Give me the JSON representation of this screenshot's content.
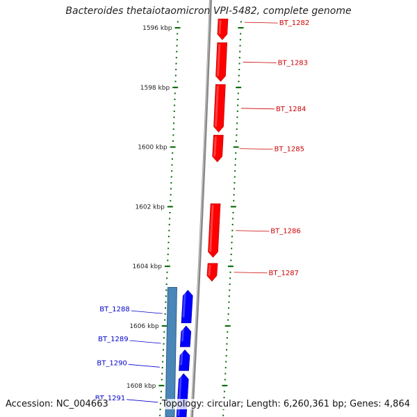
{
  "title": "Bacteroides thetaiotaomicron VPI-5482, complete genome",
  "footer": {
    "accession": "Accession: NC_004663",
    "summary": "Topology: circular; Length: 6,260,361 bp; Genes: 4,864"
  },
  "colors": {
    "forward_gene": "#ff0000",
    "reverse_gene": "#0000ff",
    "reverse_gene_label": "#0000cc",
    "forward_gene_label": "#cc0000",
    "backbone": "#888888",
    "tick": "#006400",
    "operon_bar": "#4a86b8"
  },
  "scale": {
    "ticks": [
      {
        "label": "1596 kbp",
        "kbp": 1596
      },
      {
        "label": "1598 kbp",
        "kbp": 1598
      },
      {
        "label": "1600 kbp",
        "kbp": 1600
      },
      {
        "label": "1602 kbp",
        "kbp": 1602
      },
      {
        "label": "1604 kbp",
        "kbp": 1604
      },
      {
        "label": "1606 kbp",
        "kbp": 1606
      },
      {
        "label": "1608 kbp",
        "kbp": 1608
      }
    ]
  },
  "genes": [
    {
      "name": "BT_1282",
      "strand": "+",
      "start_kbp": 1595.7,
      "end_kbp": 1596.4
    },
    {
      "name": "BT_1283",
      "strand": "+",
      "start_kbp": 1596.5,
      "end_kbp": 1597.8
    },
    {
      "name": "BT_1284",
      "strand": "+",
      "start_kbp": 1597.9,
      "end_kbp": 1599.5
    },
    {
      "name": "BT_1285",
      "strand": "+",
      "start_kbp": 1599.6,
      "end_kbp": 1600.5
    },
    {
      "name": "BT_1286",
      "strand": "+",
      "start_kbp": 1601.9,
      "end_kbp": 1603.7
    },
    {
      "name": "BT_1287",
      "strand": "+",
      "start_kbp": 1603.9,
      "end_kbp": 1604.5
    },
    {
      "name": "BT_1288",
      "strand": "-",
      "start_kbp": 1604.8,
      "end_kbp": 1605.9
    },
    {
      "name": "BT_1289",
      "strand": "-",
      "start_kbp": 1606.0,
      "end_kbp": 1606.7
    },
    {
      "name": "BT_1290",
      "strand": "-",
      "start_kbp": 1606.8,
      "end_kbp": 1607.5
    },
    {
      "name": "BT_1291",
      "strand": "-",
      "start_kbp": 1607.6,
      "end_kbp": 1609.2
    }
  ]
}
